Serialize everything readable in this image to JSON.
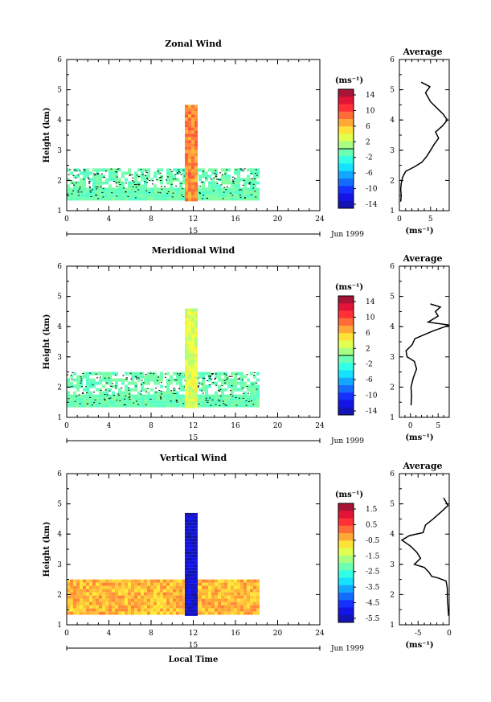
{
  "figure": {
    "xlabel": "Local Time",
    "date_label": "Jun 1999",
    "date_day": "15"
  },
  "chart_data": [
    {
      "type": "heatmap",
      "title": "Zonal Wind",
      "ylabel": "Height (km)",
      "xlim": [
        0,
        24
      ],
      "ylim": [
        1,
        6
      ],
      "xticks": [
        0,
        4,
        8,
        12,
        16,
        20,
        24
      ],
      "yticks": [
        1,
        2,
        3,
        4,
        5,
        6
      ],
      "colorbar": {
        "unit": "(ms⁻¹)",
        "ticks": [
          "14",
          "10",
          "6",
          "2",
          "-2",
          "-6",
          "-10",
          "-14"
        ],
        "range": [
          -16,
          16
        ],
        "contour_at": 0
      },
      "data_regions": [
        {
          "x": [
            0,
            18
          ],
          "y": [
            1.4,
            2.4
          ],
          "dominant_value": -1,
          "note": "scattered"
        },
        {
          "x": [
            11.2,
            12.4
          ],
          "y": [
            1.4,
            4.5
          ],
          "dominant_value": 8
        }
      ],
      "average": {
        "title": "Average",
        "xlabel": "(ms⁻¹)",
        "xlim": [
          0,
          8
        ],
        "xticks": [
          0,
          5
        ],
        "ylim": [
          1,
          6
        ],
        "yticks": [
          1,
          2,
          3,
          4,
          5,
          6
        ],
        "profile": [
          [
            0.2,
            1.3
          ],
          [
            0.3,
            1.5
          ],
          [
            0.2,
            1.7
          ],
          [
            0.3,
            1.9
          ],
          [
            0.5,
            2.1
          ],
          [
            1.0,
            2.3
          ],
          [
            2.4,
            2.45
          ],
          [
            3.6,
            2.6
          ],
          [
            4.4,
            2.8
          ],
          [
            5.0,
            3.0
          ],
          [
            5.6,
            3.2
          ],
          [
            6.3,
            3.4
          ],
          [
            5.8,
            3.6
          ],
          [
            6.9,
            3.8
          ],
          [
            7.7,
            4.0
          ],
          [
            7.0,
            4.2
          ],
          [
            6.0,
            4.4
          ],
          [
            5.0,
            4.6
          ],
          [
            4.2,
            4.9
          ],
          [
            4.9,
            5.1
          ],
          [
            3.5,
            5.25
          ]
        ]
      }
    },
    {
      "type": "heatmap",
      "title": "Meridional Wind",
      "ylabel": "Height (km)",
      "xlim": [
        0,
        24
      ],
      "ylim": [
        1,
        6
      ],
      "xticks": [
        0,
        4,
        8,
        12,
        16,
        20,
        24
      ],
      "yticks": [
        1,
        2,
        3,
        4,
        5,
        6
      ],
      "colorbar": {
        "unit": "(ms⁻¹)",
        "ticks": [
          "14",
          "10",
          "6",
          "2",
          "-2",
          "-6",
          "-10",
          "-14"
        ],
        "range": [
          -16,
          16
        ],
        "contour_at": 0
      },
      "data_regions": [
        {
          "x": [
            0,
            18
          ],
          "y": [
            1.4,
            2.5
          ],
          "dominant_value": -1,
          "note": "scattered"
        },
        {
          "x": [
            11.2,
            12.4
          ],
          "y": [
            1.4,
            4.6
          ],
          "dominant_value": 3
        }
      ],
      "average": {
        "title": "Average",
        "xlabel": "(ms⁻¹)",
        "xlim": [
          -2,
          7
        ],
        "xticks": [
          0,
          5
        ],
        "ylim": [
          1,
          6
        ],
        "yticks": [
          1,
          2,
          3,
          4,
          5,
          6
        ],
        "profile": [
          [
            0.1,
            1.4
          ],
          [
            0.2,
            1.7
          ],
          [
            0.1,
            2.0
          ],
          [
            0.5,
            2.3
          ],
          [
            1.1,
            2.6
          ],
          [
            0.7,
            2.85
          ],
          [
            -0.6,
            3.0
          ],
          [
            -0.8,
            3.2
          ],
          [
            0.3,
            3.4
          ],
          [
            0.8,
            3.6
          ],
          [
            4.0,
            3.85
          ],
          [
            7.0,
            4.05
          ],
          [
            3.2,
            4.15
          ],
          [
            5.0,
            4.35
          ],
          [
            4.5,
            4.5
          ],
          [
            5.4,
            4.65
          ],
          [
            3.6,
            4.75
          ]
        ]
      }
    },
    {
      "type": "heatmap",
      "title": "Vertical Wind",
      "ylabel": "Height (km)",
      "xlim": [
        0,
        24
      ],
      "ylim": [
        1,
        6
      ],
      "xticks": [
        0,
        4,
        8,
        12,
        16,
        20,
        24
      ],
      "yticks": [
        1,
        2,
        3,
        4,
        5,
        6
      ],
      "colorbar": {
        "unit": "(ms⁻¹)",
        "ticks": [
          "1.5",
          "0.5",
          "-0.5",
          "-1.5",
          "-2.5",
          "-3.5",
          "-4.5",
          "-5.5"
        ],
        "range": [
          -6,
          2
        ]
      },
      "data_regions": [
        {
          "x": [
            0,
            18
          ],
          "y": [
            1.4,
            2.5
          ],
          "dominant_value": -0.4
        },
        {
          "x": [
            11.2,
            12.4
          ],
          "y": [
            1.4,
            4.7
          ],
          "dominant_value": -5.5
        }
      ],
      "average": {
        "title": "Average",
        "xlabel": "(ms⁻¹)",
        "xlim": [
          -8,
          0
        ],
        "xticks": [
          -5,
          0
        ],
        "ylim": [
          1,
          6
        ],
        "yticks": [
          1,
          2,
          3,
          4,
          5,
          6
        ],
        "profile": [
          [
            -0.1,
            1.3
          ],
          [
            -0.2,
            1.6
          ],
          [
            -0.3,
            1.9
          ],
          [
            -0.3,
            2.2
          ],
          [
            -0.5,
            2.45
          ],
          [
            -1.8,
            2.55
          ],
          [
            -2.8,
            2.6
          ],
          [
            -3.3,
            2.75
          ],
          [
            -4.0,
            2.9
          ],
          [
            -5.6,
            3.0
          ],
          [
            -4.6,
            3.2
          ],
          [
            -5.2,
            3.4
          ],
          [
            -6.2,
            3.6
          ],
          [
            -7.6,
            3.8
          ],
          [
            -6.4,
            3.95
          ],
          [
            -4.2,
            4.05
          ],
          [
            -3.8,
            4.3
          ],
          [
            -2.6,
            4.5
          ],
          [
            -1.2,
            4.75
          ],
          [
            -0.2,
            4.95
          ],
          [
            -0.9,
            5.2
          ]
        ]
      }
    }
  ]
}
